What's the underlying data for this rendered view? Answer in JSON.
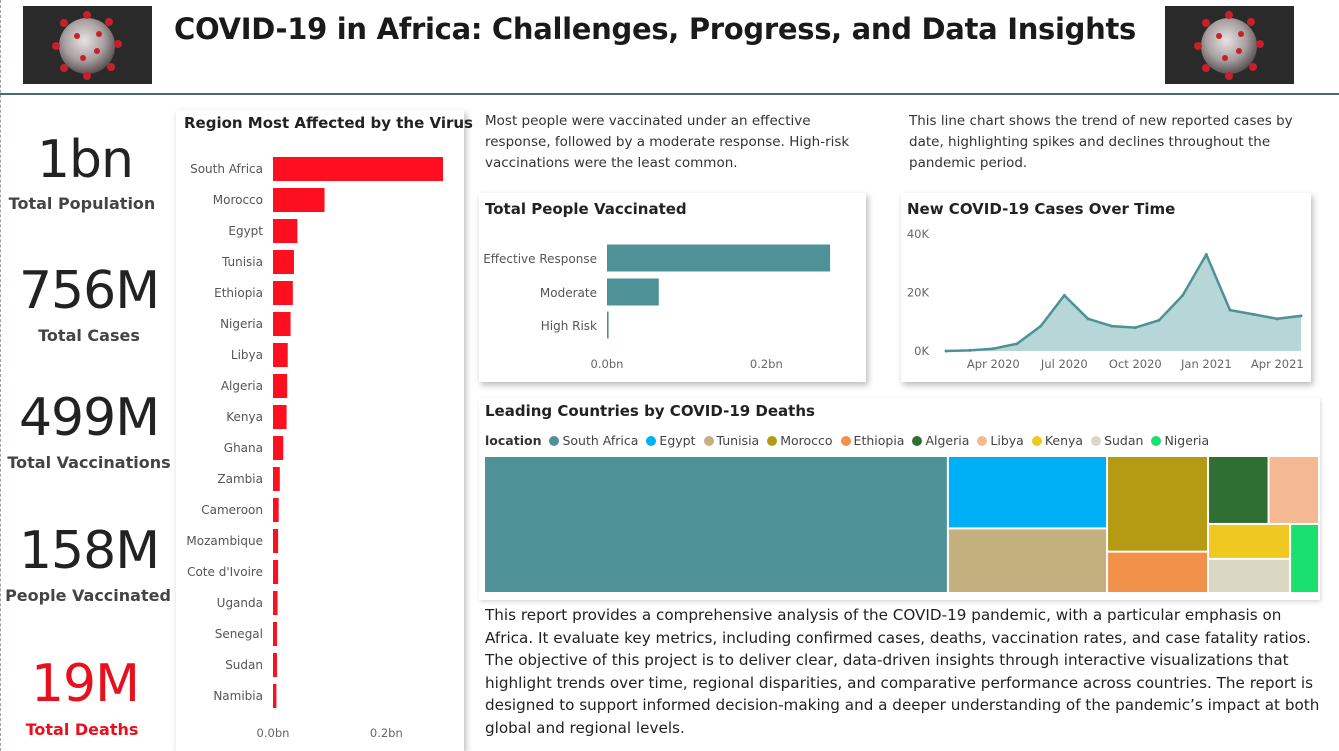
{
  "header": {
    "title": "COVID-19 in Africa: Challenges, Progress, and Data Insights"
  },
  "kpis": {
    "population": {
      "value": "1bn",
      "label": "Total Population"
    },
    "cases": {
      "value": "756M",
      "label": "Total Cases"
    },
    "vaccinations": {
      "value": "499M",
      "label": "Total Vaccinations"
    },
    "people_vaccinated": {
      "value": "158M",
      "label": "People Vaccinated"
    },
    "deaths": {
      "value": "19M",
      "label": "Total Deaths",
      "color": "#e8101e"
    }
  },
  "texts": {
    "vaccinated_desc": "Most people were vaccinated under an effective response, followed by a moderate response. High-risk vaccinations were the least common.",
    "linechart_desc": "This line chart shows the trend of new reported cases by date, highlighting spikes and declines throughout the pandemic period.",
    "report": "This report provides a comprehensive analysis of the COVID-19 pandemic, with a particular emphasis on Africa. It evaluate key metrics, including confirmed cases, deaths, vaccination rates, and case fatality ratios. The objective of this project is to deliver clear, data-driven insights through interactive visualizations that highlight trends over time, regional disparities, and comparative performance across countries. The report is designed to support informed decision-making and a deeper understanding of the pandemic’s impact at both global and regional levels."
  },
  "colors": {
    "bar_red": "#fe0f1f",
    "teal": "#4e9196",
    "teal_light": "#a9cfd1"
  },
  "chart_data": [
    {
      "type": "bar",
      "orientation": "horizontal",
      "title": "Region Most Affected by the Virus",
      "categories": [
        "South Africa",
        "Morocco",
        "Egypt",
        "Tunisia",
        "Ethiopia",
        "Nigeria",
        "Libya",
        "Algeria",
        "Kenya",
        "Ghana",
        "Zambia",
        "Cameroon",
        "Mozambique",
        "Cote d'Ivoire",
        "Uganda",
        "Senegal",
        "Sudan",
        "Namibia"
      ],
      "values": [
        0.3,
        0.091,
        0.043,
        0.037,
        0.035,
        0.031,
        0.026,
        0.025,
        0.024,
        0.018,
        0.012,
        0.01,
        0.009,
        0.009,
        0.008,
        0.007,
        0.007,
        0.006
      ],
      "xlim": [
        0,
        0.3
      ],
      "ticks": [
        "0.0bn",
        "0.2bn"
      ],
      "tick_values": [
        0,
        0.2
      ]
    },
    {
      "type": "bar",
      "orientation": "horizontal",
      "title": "Total People Vaccinated",
      "categories": [
        "Effective Response",
        "Moderate",
        "High Risk"
      ],
      "values": [
        0.28,
        0.065,
        0.002
      ],
      "xlim": [
        0,
        0.3
      ],
      "ticks": [
        "0.0bn",
        "0.2bn"
      ],
      "tick_values": [
        0,
        0.2
      ]
    },
    {
      "type": "area",
      "title": "New COVID-19 Cases Over Time",
      "x": [
        "2020-02",
        "2020-03",
        "2020-04",
        "2020-05",
        "2020-06",
        "2020-07",
        "2020-08",
        "2020-09",
        "2020-10",
        "2020-11",
        "2020-12",
        "2021-01",
        "2021-02",
        "2021-03",
        "2021-04",
        "2021-05"
      ],
      "y": [
        0,
        200,
        800,
        2500,
        8500,
        19000,
        11000,
        8500,
        8000,
        10500,
        19000,
        33000,
        14000,
        12500,
        11000,
        12000
      ],
      "ylim": [
        0,
        40000
      ],
      "yticks": [
        "0K",
        "20K",
        "40K"
      ],
      "ytick_values": [
        0,
        20000,
        40000
      ],
      "xticks": [
        "Apr 2020",
        "Jul 2020",
        "Oct 2020",
        "Jan 2021",
        "Apr 2021"
      ],
      "xtick_values": [
        "2020-04",
        "2020-07",
        "2020-10",
        "2021-01",
        "2021-04"
      ]
    },
    {
      "type": "treemap",
      "title": "Leading Countries by COVID-19 Deaths",
      "legend_title": "location",
      "series": [
        {
          "name": "South Africa",
          "value": 102,
          "color": "#4e9196"
        },
        {
          "name": "Egypt",
          "value": 18.5,
          "color": "#00b0f6"
        },
        {
          "name": "Tunisia",
          "value": 16.5,
          "color": "#c4b07f"
        },
        {
          "name": "Morocco",
          "value": 15.5,
          "color": "#b59a14"
        },
        {
          "name": "Ethiopia",
          "value": 6.7,
          "color": "#f2914a"
        },
        {
          "name": "Algeria",
          "value": 6.6,
          "color": "#2f6f34"
        },
        {
          "name": "Libya",
          "value": 5.5,
          "color": "#f4b992"
        },
        {
          "name": "Kenya",
          "value": 4.6,
          "color": "#efc922"
        },
        {
          "name": "Sudan",
          "value": 4.5,
          "color": "#d9d7c2"
        },
        {
          "name": "Nigeria",
          "value": 3.2,
          "color": "#19e06e"
        }
      ]
    }
  ]
}
